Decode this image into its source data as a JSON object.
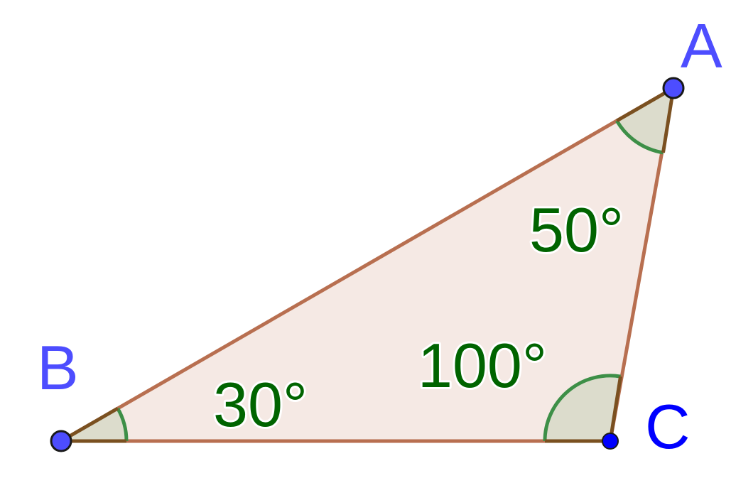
{
  "diagram": {
    "vertices": {
      "A": {
        "label": "A"
      },
      "B": {
        "label": "B"
      },
      "C": {
        "label": "C"
      }
    },
    "angles": {
      "A": {
        "label": "50°",
        "degrees": 50
      },
      "B": {
        "label": "30°",
        "degrees": 30
      },
      "C": {
        "label": "100°",
        "degrees": 100
      }
    },
    "colors": {
      "triangle_fill": "#f5e9e4",
      "side_stroke": "#b86f50",
      "angle_fill": "#dcdccc",
      "angle_arc": "#3d8f47",
      "angle_side": "#7a5020",
      "angle_text": "#006400",
      "vertex_fill": "#4d4dff",
      "vertex_label_A": "#4d4dff",
      "vertex_label_B": "#4d4dff",
      "vertex_label_C": "#0000ff"
    }
  }
}
